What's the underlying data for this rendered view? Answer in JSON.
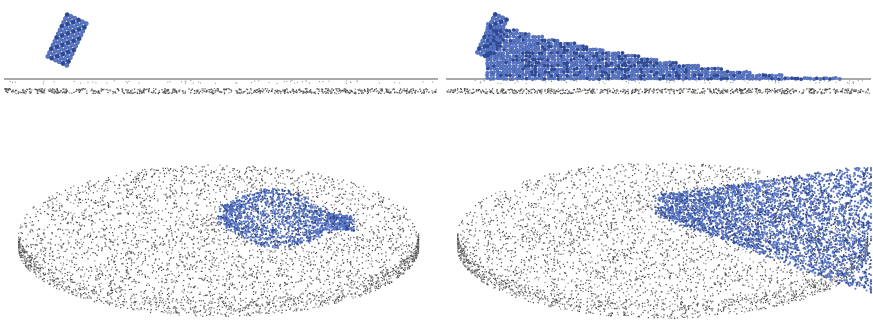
{
  "figure": {
    "colors": {
      "background": "#ffffff",
      "bed_particles": "#4a4a4a",
      "bed_particles_light": "#8a8a8a",
      "flow_particles": "#5b78c7",
      "flow_particles_dark": "#2f4a94",
      "surface_line": "#555555"
    },
    "panels": [
      {
        "view": "side",
        "state": "initial"
      },
      {
        "view": "side",
        "state": "final"
      },
      {
        "view": "perspective",
        "state": "initial"
      },
      {
        "view": "perspective",
        "state": "final"
      }
    ]
  }
}
